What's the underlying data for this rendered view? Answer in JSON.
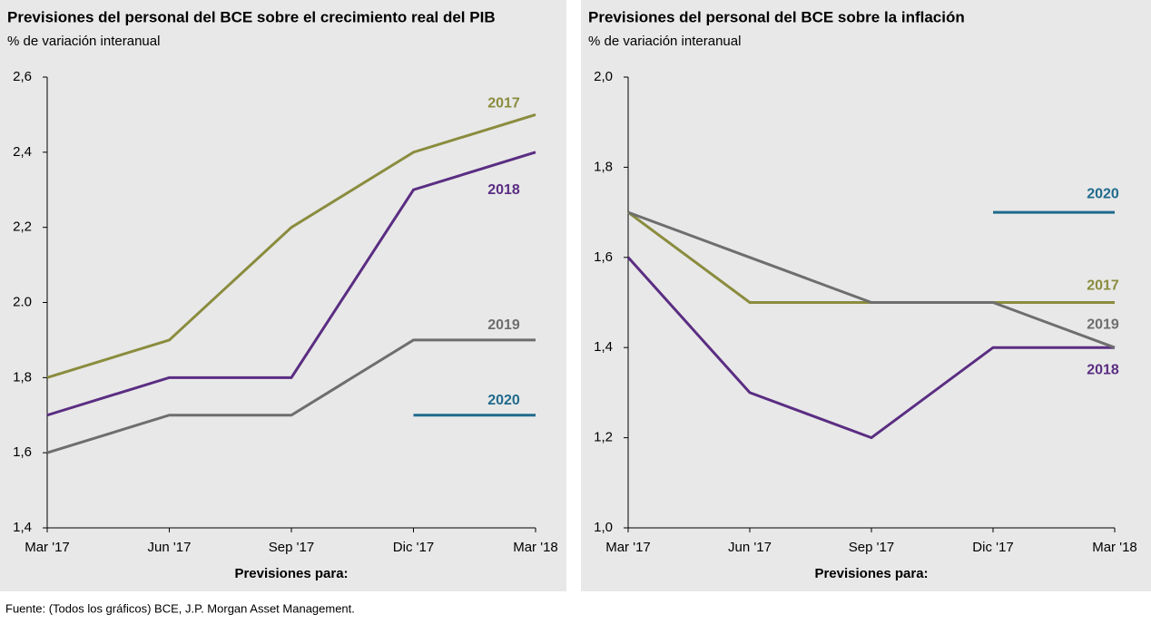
{
  "chart_data": [
    {
      "type": "line",
      "title": "Previsiones del personal del BCE sobre el crecimiento real del PIB",
      "subtitle": "% de variación interanual",
      "x_label": "Previsiones para:",
      "categories": [
        "Mar '17",
        "Jun '17",
        "Sep '17",
        "Dic '17",
        "Mar '18"
      ],
      "ylim": [
        1.4,
        2.6
      ],
      "yticks": [
        {
          "value": 1.4,
          "label": "1,4"
        },
        {
          "value": 1.6,
          "label": "1,6"
        },
        {
          "value": 1.8,
          "label": "1,8"
        },
        {
          "value": 2.0,
          "label": "2.0"
        },
        {
          "value": 2.2,
          "label": "2,2"
        },
        {
          "value": 2.4,
          "label": "2,4"
        },
        {
          "value": 2.6,
          "label": "2,6"
        }
      ],
      "series": [
        {
          "name": "2017",
          "color": "#8a8c3e",
          "values": [
            1.8,
            1.9,
            2.2,
            2.4,
            2.5
          ]
        },
        {
          "name": "2018",
          "color": "#5a2d82",
          "values": [
            1.7,
            1.8,
            1.8,
            2.3,
            2.4
          ]
        },
        {
          "name": "2019",
          "color": "#6e6e6e",
          "values": [
            1.6,
            1.7,
            1.7,
            1.9,
            1.9
          ]
        },
        {
          "name": "2020",
          "color": "#1f6b8c",
          "values": [
            null,
            null,
            null,
            1.7,
            1.7
          ]
        }
      ]
    },
    {
      "type": "line",
      "title": "Previsiones del personal del BCE sobre la inflación",
      "subtitle": "% de variación interanual",
      "x_label": "Previsiones para:",
      "categories": [
        "Mar '17",
        "Jun '17",
        "Sep '17",
        "Dic '17",
        "Mar '18"
      ],
      "ylim": [
        1.0,
        2.0
      ],
      "yticks": [
        {
          "value": 1.0,
          "label": "1,0"
        },
        {
          "value": 1.2,
          "label": "1,2"
        },
        {
          "value": 1.4,
          "label": "1,4"
        },
        {
          "value": 1.6,
          "label": "1,6"
        },
        {
          "value": 1.8,
          "label": "1,8"
        },
        {
          "value": 2.0,
          "label": "2,0"
        }
      ],
      "series": [
        {
          "name": "2017",
          "color": "#8a8c3e",
          "values": [
            1.7,
            1.5,
            1.5,
            1.5,
            1.5
          ]
        },
        {
          "name": "2018",
          "color": "#5a2d82",
          "values": [
            1.6,
            1.3,
            1.2,
            1.4,
            1.4
          ]
        },
        {
          "name": "2019",
          "color": "#6e6e6e",
          "values": [
            1.7,
            1.6,
            1.5,
            1.5,
            1.4
          ]
        },
        {
          "name": "2020",
          "color": "#1f6b8c",
          "values": [
            null,
            null,
            null,
            1.7,
            1.7
          ]
        }
      ]
    }
  ],
  "source": "Fuente: (Todos los gráficos) BCE, J.P. Morgan Asset Management."
}
